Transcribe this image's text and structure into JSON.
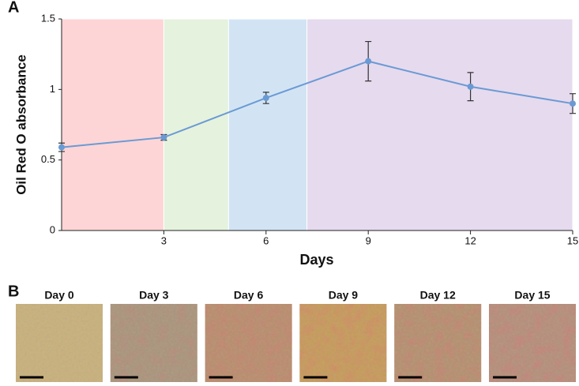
{
  "chart_data": {
    "type": "line",
    "panel_label": "A",
    "y_label": "Oil Red O absorbance",
    "x_label": "Days",
    "x": [
      0,
      3,
      6,
      9,
      12,
      15
    ],
    "values": [
      0.59,
      0.66,
      0.94,
      1.2,
      1.02,
      0.9
    ],
    "errors": [
      0.03,
      0.02,
      0.04,
      0.14,
      0.1,
      0.07
    ],
    "color": "#6a9ad4",
    "error_color": "#333333",
    "xlim": [
      0,
      15
    ],
    "ylim": [
      0,
      1.5
    ],
    "xticks": [
      3,
      6,
      9,
      12,
      15
    ],
    "yticks": [
      0,
      0.5,
      1,
      1.5
    ],
    "bands": [
      {
        "from": 0,
        "to": 3,
        "color": "#fdd5d6"
      },
      {
        "from": 3,
        "to": 4.9,
        "color": "#e5f2de"
      },
      {
        "from": 4.9,
        "to": 7.2,
        "color": "#d2e4f4"
      },
      {
        "from": 7.2,
        "to": 15,
        "color": "#e6daee"
      }
    ]
  },
  "panel_b": {
    "label": "B",
    "images": [
      {
        "title": "Day 0"
      },
      {
        "title": "Day 3"
      },
      {
        "title": "Day 6"
      },
      {
        "title": "Day 9"
      },
      {
        "title": "Day 12"
      },
      {
        "title": "Day 15"
      }
    ]
  }
}
